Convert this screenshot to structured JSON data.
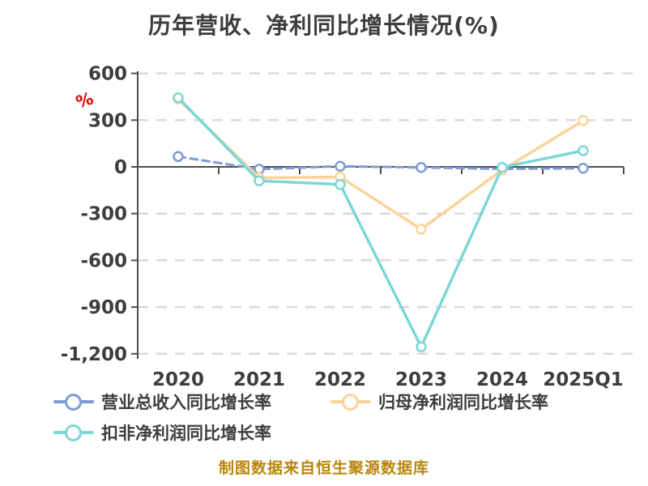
{
  "title": "历年营收、净利同比增长情况(%)",
  "y_unit_label": "%",
  "footer": "制图数据来自恒生聚源数据库",
  "appearance": {
    "background": "#ffffff",
    "text_color": "#3d3d3d",
    "axis_color": "#4d4d4d",
    "grid_color": "#d9d9d9",
    "accent_red": "#e60000",
    "footer_color": "#b8860b"
  },
  "chart_data": {
    "type": "line",
    "title": "历年营收、净利同比增长情况(%)",
    "xlabel": "",
    "ylabel": "%",
    "categories": [
      "2020",
      "2021",
      "2022",
      "2023",
      "2024",
      "2025Q1"
    ],
    "series": [
      {
        "name": "营业总收入同比增长率",
        "color": "#7f9bd6",
        "style": "dashed",
        "values": [
          66,
          -15,
          4,
          -4,
          -13,
          -9
        ]
      },
      {
        "name": "归母净利润同比增长率",
        "color": "#fbd39a",
        "style": "solid",
        "values": [
          436,
          -70,
          -65,
          -400,
          -20,
          297
        ]
      },
      {
        "name": "扣非净利润同比增长率",
        "color": "#7dd6d6",
        "style": "solid",
        "values": [
          444,
          -90,
          -113,
          -1155,
          -3,
          104
        ]
      }
    ],
    "ylim": [
      -1200,
      600
    ],
    "ytick_step": 300,
    "yticks": [
      {
        "value": 600,
        "label": "600"
      },
      {
        "value": 300,
        "label": "300"
      },
      {
        "value": 0,
        "label": "0"
      },
      {
        "value": -300,
        "label": "-300"
      },
      {
        "value": -600,
        "label": "-600"
      },
      {
        "value": -900,
        "label": "-900"
      },
      {
        "value": -1200,
        "label": "-1,200"
      }
    ],
    "grid": "dashed horizontal",
    "legend_position": "bottom"
  }
}
